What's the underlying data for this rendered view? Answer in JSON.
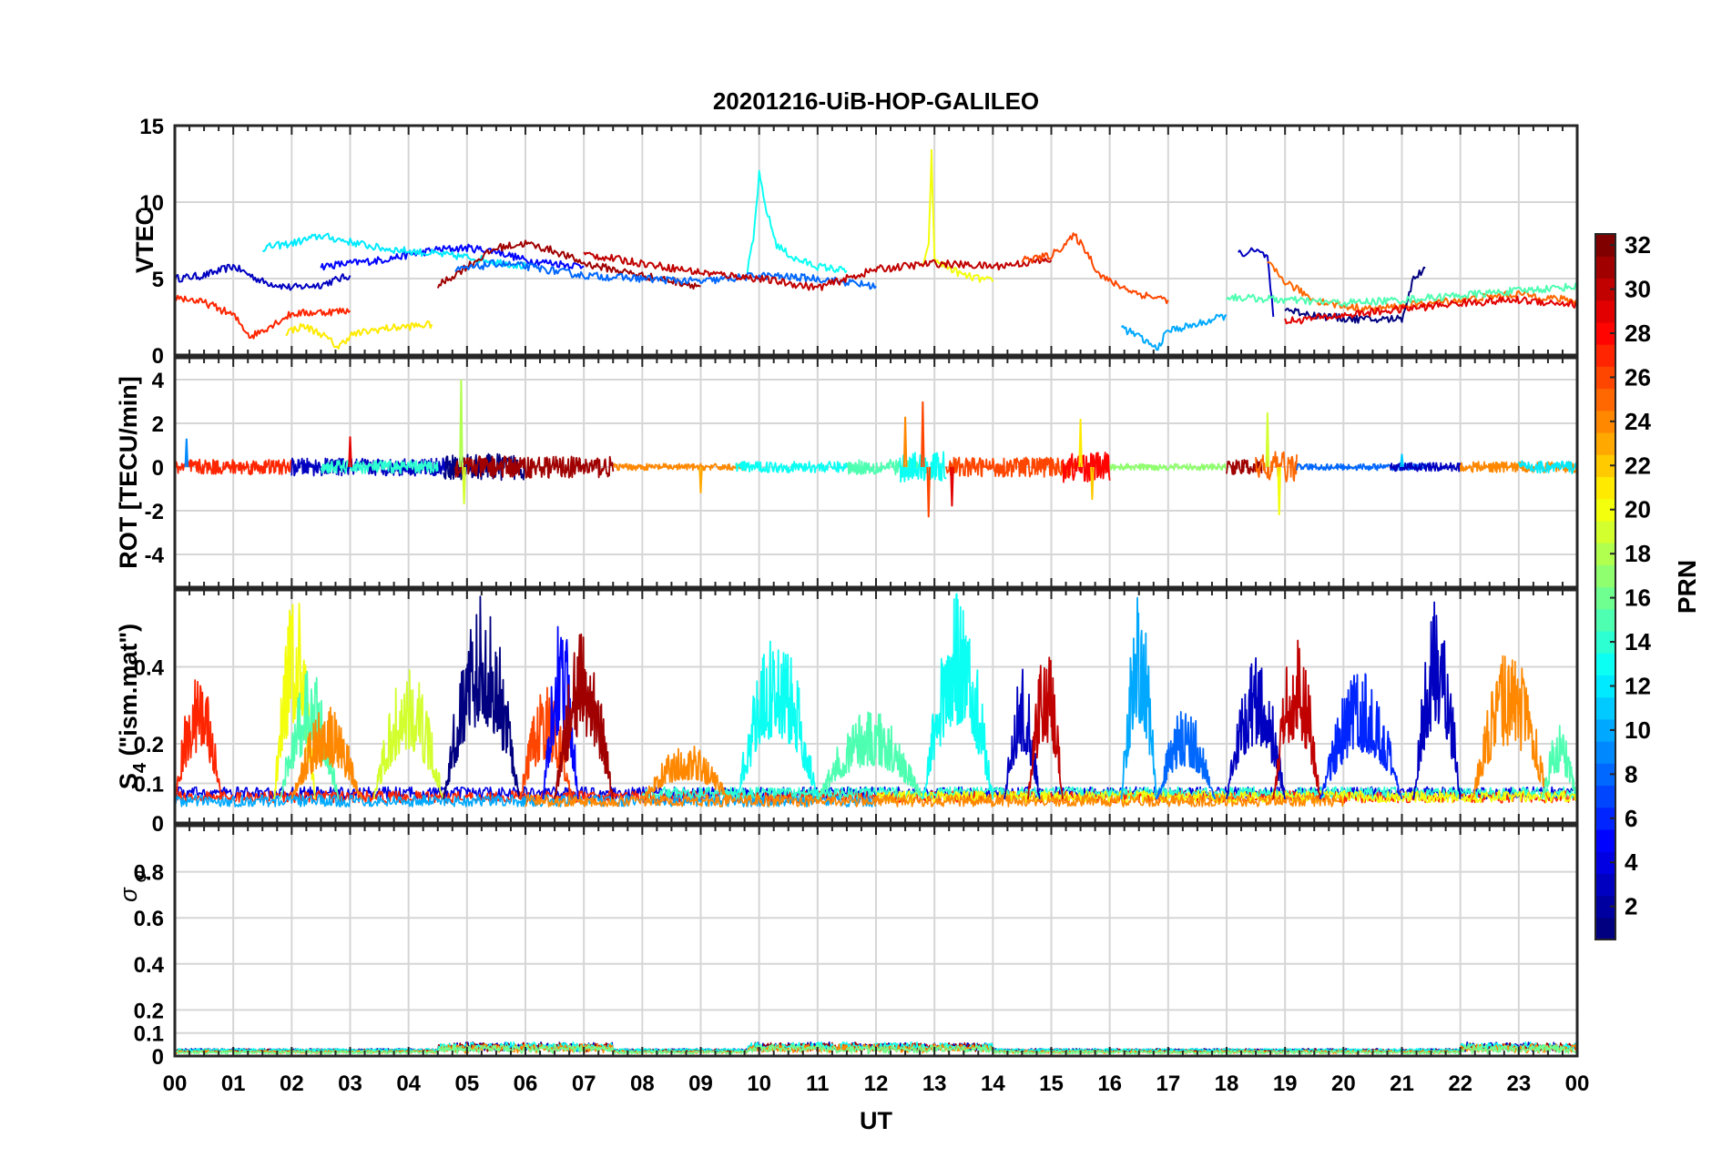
{
  "figure": {
    "title": "20201216-UiB-HOP-GALILEO",
    "xlabel": "UT"
  },
  "chart_data": [
    {
      "type": "line",
      "panel": "vtec",
      "ylabel": "VTEC",
      "ylim": [
        0,
        15
      ],
      "yticks": [
        0,
        5,
        10,
        15
      ],
      "yticklabels": [
        "0",
        "5",
        "10",
        "15"
      ],
      "xlim": [
        0,
        24
      ],
      "xticklabels": [
        "00",
        "01",
        "02",
        "03",
        "04",
        "05",
        "06",
        "07",
        "08",
        "09",
        "10",
        "11",
        "12",
        "13",
        "14",
        "15",
        "16",
        "17",
        "18",
        "19",
        "20",
        "21",
        "22",
        "23",
        "00"
      ],
      "series_note": "Multiple satellite traces, colored by PRN (1-32)",
      "series": [
        {
          "prn": 3,
          "x": [
            0.0,
            0.5,
            1.0,
            1.5,
            2.0,
            2.5,
            3.0
          ],
          "y": [
            5.0,
            5.2,
            5.8,
            4.8,
            4.4,
            4.6,
            5.2
          ]
        },
        {
          "prn": 5,
          "x": [
            2.5,
            3.5,
            4.5,
            5.0,
            5.5,
            6.0,
            7.0
          ],
          "y": [
            5.8,
            6.2,
            6.9,
            7.0,
            6.8,
            6.2,
            5.8
          ]
        },
        {
          "prn": 12,
          "x": [
            1.5,
            2.0,
            2.5,
            3.0,
            3.5,
            4.0,
            5.0,
            6.0
          ],
          "y": [
            7.0,
            7.3,
            7.8,
            7.4,
            7.0,
            6.8,
            6.4,
            5.8
          ]
        },
        {
          "prn": 13,
          "x": [
            9.8,
            9.9,
            10.0,
            10.1,
            10.3,
            10.6,
            11.0,
            11.5
          ],
          "y": [
            5.5,
            7.5,
            11.8,
            9.8,
            7.2,
            6.3,
            5.8,
            5.5
          ]
        },
        {
          "prn": 20,
          "x": [
            12.8,
            12.9,
            12.95,
            13.0,
            13.5,
            14.0
          ],
          "y": [
            5.8,
            7.0,
            13.2,
            6.2,
            5.2,
            4.8
          ]
        },
        {
          "prn": 27,
          "x": [
            0.0,
            0.3,
            0.6,
            1.0,
            1.3,
            2.0,
            2.5,
            3.0
          ],
          "y": [
            3.8,
            3.6,
            3.3,
            2.6,
            1.2,
            2.7,
            2.8,
            2.9
          ]
        },
        {
          "prn": 21,
          "x": [
            1.9,
            2.2,
            2.5,
            2.8,
            3.0,
            3.5,
            4.4
          ],
          "y": [
            1.5,
            1.9,
            1.4,
            0.5,
            1.3,
            1.7,
            2.0
          ]
        },
        {
          "prn": 31,
          "x": [
            4.5,
            5.0,
            5.5,
            6.0,
            6.5,
            7.0,
            8.0,
            9.0
          ],
          "y": [
            4.5,
            5.8,
            7.0,
            7.3,
            6.8,
            6.0,
            5.2,
            4.5
          ]
        },
        {
          "prn": 8,
          "x": [
            4.8,
            5.5,
            6.0,
            7.0,
            8.0,
            9.0,
            10.0,
            11.0,
            12.0
          ],
          "y": [
            5.5,
            6.0,
            5.8,
            5.2,
            5.0,
            4.8,
            5.2,
            5.0,
            4.5
          ]
        },
        {
          "prn": 30,
          "x": [
            7.0,
            8.0,
            9.0,
            10.0,
            11.0,
            12.0,
            13.0,
            14.0,
            15.0
          ],
          "y": [
            6.6,
            6.0,
            5.4,
            5.0,
            4.4,
            5.6,
            6.0,
            5.8,
            6.2
          ]
        },
        {
          "prn": 26,
          "x": [
            14.5,
            15.0,
            15.4,
            15.6,
            15.8,
            16.0,
            16.5,
            17.0
          ],
          "y": [
            6.2,
            6.5,
            7.8,
            6.8,
            5.4,
            4.8,
            4.0,
            3.6
          ]
        },
        {
          "prn": 10,
          "x": [
            16.2,
            16.5,
            16.8,
            17.0,
            17.5,
            18.0
          ],
          "y": [
            1.8,
            1.2,
            0.4,
            1.6,
            2.0,
            2.6
          ]
        },
        {
          "prn": 3,
          "x": [
            18.2,
            18.5,
            18.7,
            18.8
          ],
          "y": [
            6.6,
            6.8,
            6.4,
            2.5
          ]
        },
        {
          "prn": 25,
          "x": [
            18.7,
            19.0,
            19.5,
            20.0,
            20.5,
            21.0,
            22.0,
            23.0,
            24.0
          ],
          "y": [
            6.0,
            4.8,
            3.6,
            3.2,
            3.0,
            3.2,
            3.6,
            4.0,
            3.5
          ]
        },
        {
          "prn": 1,
          "x": [
            19.0,
            19.5,
            20.0,
            20.5,
            21.0,
            21.2,
            21.4
          ],
          "y": [
            3.0,
            2.6,
            2.4,
            2.3,
            2.4,
            5.0,
            5.7
          ]
        },
        {
          "prn": 15,
          "x": [
            18.0,
            19.0,
            20.0,
            21.0,
            22.0,
            23.0,
            24.0
          ],
          "y": [
            3.8,
            3.6,
            3.4,
            3.6,
            3.9,
            4.2,
            4.5
          ]
        },
        {
          "prn": 29,
          "x": [
            19.0,
            20.0,
            21.0,
            22.0,
            23.0,
            24.0
          ],
          "y": [
            2.2,
            2.6,
            3.0,
            3.4,
            3.6,
            3.3
          ]
        }
      ]
    },
    {
      "type": "line",
      "panel": "rot",
      "ylabel": "ROT [TECU/min]",
      "ylim": [
        -5.5,
        5.0
      ],
      "yticks": [
        -4,
        -2,
        0,
        2,
        4
      ],
      "yticklabels": [
        "-4",
        "-2",
        "0",
        "2",
        "4"
      ],
      "xlim": [
        0,
        24
      ],
      "series_note": "Rate of TEC fluctuating around 0 with spikes",
      "spikes": [
        {
          "x": 0.2,
          "y": 1.3
        },
        {
          "x": 3.0,
          "y": 1.4
        },
        {
          "x": 4.9,
          "y": 4.0
        },
        {
          "x": 4.95,
          "y": -1.7
        },
        {
          "x": 9.0,
          "y": -1.2
        },
        {
          "x": 12.5,
          "y": 2.3
        },
        {
          "x": 12.8,
          "y": 3.0
        },
        {
          "x": 12.9,
          "y": -2.3
        },
        {
          "x": 13.3,
          "y": -1.8
        },
        {
          "x": 15.5,
          "y": 2.2
        },
        {
          "x": 15.7,
          "y": -1.5
        },
        {
          "x": 18.7,
          "y": 2.5
        },
        {
          "x": 18.9,
          "y": -2.2
        },
        {
          "x": 21.0,
          "y": 0.6
        }
      ]
    },
    {
      "type": "line",
      "panel": "s4",
      "ylabel": "S₄ (\"ism.mat\")",
      "ylabel_main": "S",
      "ylabel_sub": "4",
      "ylabel_rest": " (\"ism.mat\")",
      "ylim": [
        0,
        0.6
      ],
      "yticks": [
        0,
        0.1,
        0.2,
        0.4
      ],
      "yticklabels": [
        "0",
        "0.1",
        "0.2",
        "0.4"
      ],
      "xlim": [
        0,
        24
      ],
      "series_note": "Amplitude scintillation index, noisy bursts",
      "bursts": [
        {
          "prn": 27,
          "x0": 0.0,
          "x1": 0.8,
          "peak": 0.4
        },
        {
          "prn": 20,
          "x0": 1.7,
          "x1": 2.4,
          "peak": 0.6
        },
        {
          "prn": 15,
          "x0": 1.8,
          "x1": 2.8,
          "peak": 0.4
        },
        {
          "prn": 24,
          "x0": 2.0,
          "x1": 3.2,
          "peak": 0.3
        },
        {
          "prn": 19,
          "x0": 3.4,
          "x1": 4.6,
          "peak": 0.4
        },
        {
          "prn": 1,
          "x0": 4.6,
          "x1": 5.9,
          "peak": 0.6
        },
        {
          "prn": 26,
          "x0": 5.9,
          "x1": 6.8,
          "peak": 0.35
        },
        {
          "prn": 5,
          "x0": 6.3,
          "x1": 6.9,
          "peak": 0.55
        },
        {
          "prn": 31,
          "x0": 6.5,
          "x1": 7.5,
          "peak": 0.5
        },
        {
          "prn": 24,
          "x0": 8.0,
          "x1": 9.5,
          "peak": 0.2
        },
        {
          "prn": 13,
          "x0": 9.6,
          "x1": 11.0,
          "peak": 0.5
        },
        {
          "prn": 15,
          "x0": 11.0,
          "x1": 12.8,
          "peak": 0.3
        },
        {
          "prn": 13,
          "x0": 12.8,
          "x1": 14.0,
          "peak": 0.6
        },
        {
          "prn": 3,
          "x0": 14.2,
          "x1": 14.8,
          "peak": 0.4
        },
        {
          "prn": 30,
          "x0": 14.6,
          "x1": 15.2,
          "peak": 0.47
        },
        {
          "prn": 10,
          "x0": 16.2,
          "x1": 16.8,
          "peak": 0.6
        },
        {
          "prn": 8,
          "x0": 16.8,
          "x1": 17.8,
          "peak": 0.3
        },
        {
          "prn": 3,
          "x0": 18.0,
          "x1": 19.0,
          "peak": 0.45
        },
        {
          "prn": 30,
          "x0": 18.8,
          "x1": 19.6,
          "peak": 0.5
        },
        {
          "prn": 6,
          "x0": 19.6,
          "x1": 21.0,
          "peak": 0.4
        },
        {
          "prn": 3,
          "x0": 21.2,
          "x1": 22.0,
          "peak": 0.6
        },
        {
          "prn": 24,
          "x0": 22.2,
          "x1": 23.5,
          "peak": 0.45
        },
        {
          "prn": 15,
          "x0": 23.4,
          "x1": 24.0,
          "peak": 0.25
        }
      ]
    },
    {
      "type": "line",
      "panel": "sigma_phi",
      "ylabel": "σ φ",
      "ylabel_main": "σ",
      "ylabel_sub": "φ",
      "ylim": [
        0,
        1.0
      ],
      "yticks": [
        0,
        0.1,
        0.2,
        0.4,
        0.6,
        0.8
      ],
      "yticklabels": [
        "0",
        "0.1",
        "0.2",
        "0.4",
        "0.6",
        "0.8"
      ],
      "xlim": [
        0,
        24
      ],
      "series_note": "Phase scintillation index near zero (< 0.06)",
      "max_value": 0.06
    },
    {
      "type": "colorbar",
      "label": "PRN",
      "range": [
        1,
        32
      ],
      "ticks": [
        2,
        4,
        6,
        8,
        10,
        12,
        14,
        16,
        18,
        20,
        22,
        24,
        26,
        28,
        30,
        32
      ],
      "ticklabels": [
        "2",
        "4",
        "6",
        "8",
        "10",
        "12",
        "14",
        "16",
        "18",
        "20",
        "22",
        "24",
        "26",
        "28",
        "30",
        "32"
      ],
      "colormap": "jet"
    }
  ]
}
